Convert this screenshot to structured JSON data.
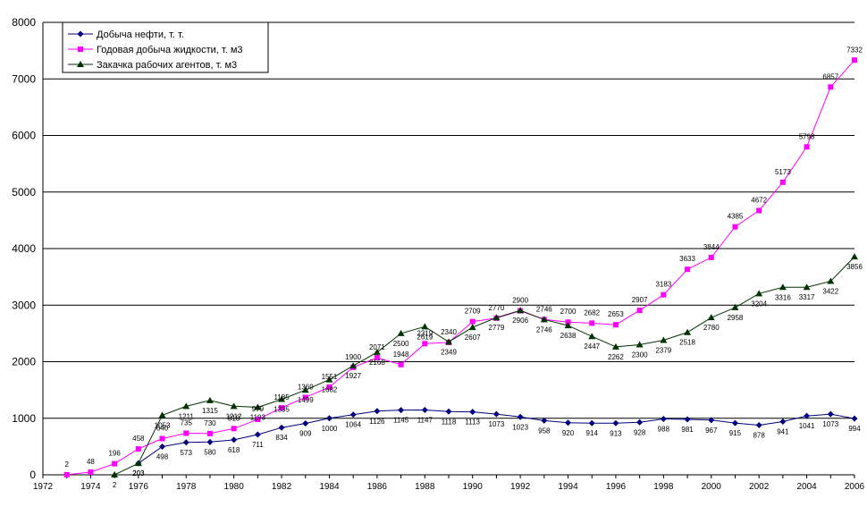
{
  "chart_data": {
    "type": "line",
    "title": "",
    "xlabel": "",
    "ylabel": "",
    "ylim": [
      0,
      8000
    ],
    "yticks": [
      0,
      1000,
      2000,
      3000,
      4000,
      5000,
      6000,
      7000,
      8000
    ],
    "xlim": [
      1972,
      2006
    ],
    "xtick_labels": [
      "1972",
      "1974",
      "1976",
      "1978",
      "1980",
      "1982",
      "1984",
      "1986",
      "1988",
      "1990",
      "1992",
      "1994",
      "1996",
      "1998",
      "2000",
      "2002",
      "2004",
      "2006"
    ],
    "grid": "horizontal",
    "legend_position": "top-left",
    "series": [
      {
        "name": "Добыча нефти, т. т.",
        "color": "#000080",
        "marker": "diamond",
        "points": [
          [
            1976,
            203
          ],
          [
            1977,
            498
          ],
          [
            1978,
            573
          ],
          [
            1979,
            580
          ],
          [
            1980,
            618
          ],
          [
            1981,
            711
          ],
          [
            1982,
            834
          ],
          [
            1983,
            909
          ],
          [
            1984,
            1000
          ],
          [
            1985,
            1064
          ],
          [
            1986,
            1126
          ],
          [
            1987,
            1145
          ],
          [
            1988,
            1147
          ],
          [
            1989,
            1118
          ],
          [
            1990,
            1113
          ],
          [
            1991,
            1073
          ],
          [
            1992,
            1023
          ],
          [
            1993,
            958
          ],
          [
            1994,
            920
          ],
          [
            1995,
            914
          ],
          [
            1996,
            913
          ],
          [
            1997,
            928
          ],
          [
            1998,
            988
          ],
          [
            1999,
            981
          ],
          [
            2000,
            967
          ],
          [
            2001,
            915
          ],
          [
            2002,
            878
          ],
          [
            2003,
            941
          ],
          [
            2004,
            1041
          ],
          [
            2005,
            1073
          ],
          [
            2006,
            994
          ]
        ]
      },
      {
        "name": "Годовая добыча жидкости, т. м3",
        "color": "#ff00ff",
        "marker": "square",
        "points": [
          [
            1973,
            2
          ],
          [
            1974,
            48
          ],
          [
            1975,
            196
          ],
          [
            1976,
            458
          ],
          [
            1977,
            640
          ],
          [
            1978,
            735
          ],
          [
            1979,
            730
          ],
          [
            1980,
            818
          ],
          [
            1981,
            979
          ],
          [
            1982,
            1185
          ],
          [
            1983,
            1369
          ],
          [
            1984,
            1551
          ],
          [
            1985,
            1900
          ],
          [
            1986,
            2071
          ],
          [
            1987,
            1948
          ],
          [
            1988,
            2319
          ],
          [
            1989,
            2340
          ],
          [
            1990,
            2709
          ],
          [
            1991,
            2770
          ],
          [
            1992,
            2900
          ],
          [
            1993,
            2746
          ],
          [
            1994,
            2700
          ],
          [
            1995,
            2682
          ],
          [
            1996,
            2653
          ],
          [
            1997,
            2907
          ],
          [
            1998,
            3183
          ],
          [
            1999,
            3633
          ],
          [
            2000,
            3844
          ],
          [
            2001,
            4385
          ],
          [
            2002,
            4672
          ],
          [
            2003,
            5173
          ],
          [
            2004,
            5798
          ],
          [
            2005,
            6857
          ],
          [
            2006,
            7332
          ]
        ]
      },
      {
        "name": "Закачка рабочих агентов, т. м3",
        "color": "#003300",
        "marker": "triangle",
        "points": [
          [
            1975,
            2
          ],
          [
            1976,
            203
          ],
          [
            1977,
            1053
          ],
          [
            1978,
            1211
          ],
          [
            1979,
            1315
          ],
          [
            1980,
            1212
          ],
          [
            1981,
            1193
          ],
          [
            1982,
            1335
          ],
          [
            1983,
            1499
          ],
          [
            1984,
            1682
          ],
          [
            1985,
            1927
          ],
          [
            1986,
            2168
          ],
          [
            1987,
            2500
          ],
          [
            1988,
            2619
          ],
          [
            1989,
            2349
          ],
          [
            1990,
            2607
          ],
          [
            1991,
            2779
          ],
          [
            1992,
            2906
          ],
          [
            1993,
            2746
          ],
          [
            1994,
            2638
          ],
          [
            1995,
            2447
          ],
          [
            1996,
            2262
          ],
          [
            1997,
            2300
          ],
          [
            1998,
            2379
          ],
          [
            1999,
            2518
          ],
          [
            2000,
            2780
          ],
          [
            2001,
            2958
          ],
          [
            2002,
            3204
          ],
          [
            2003,
            3316
          ],
          [
            2004,
            3317
          ],
          [
            2005,
            3422
          ],
          [
            2006,
            3856
          ]
        ]
      }
    ]
  }
}
